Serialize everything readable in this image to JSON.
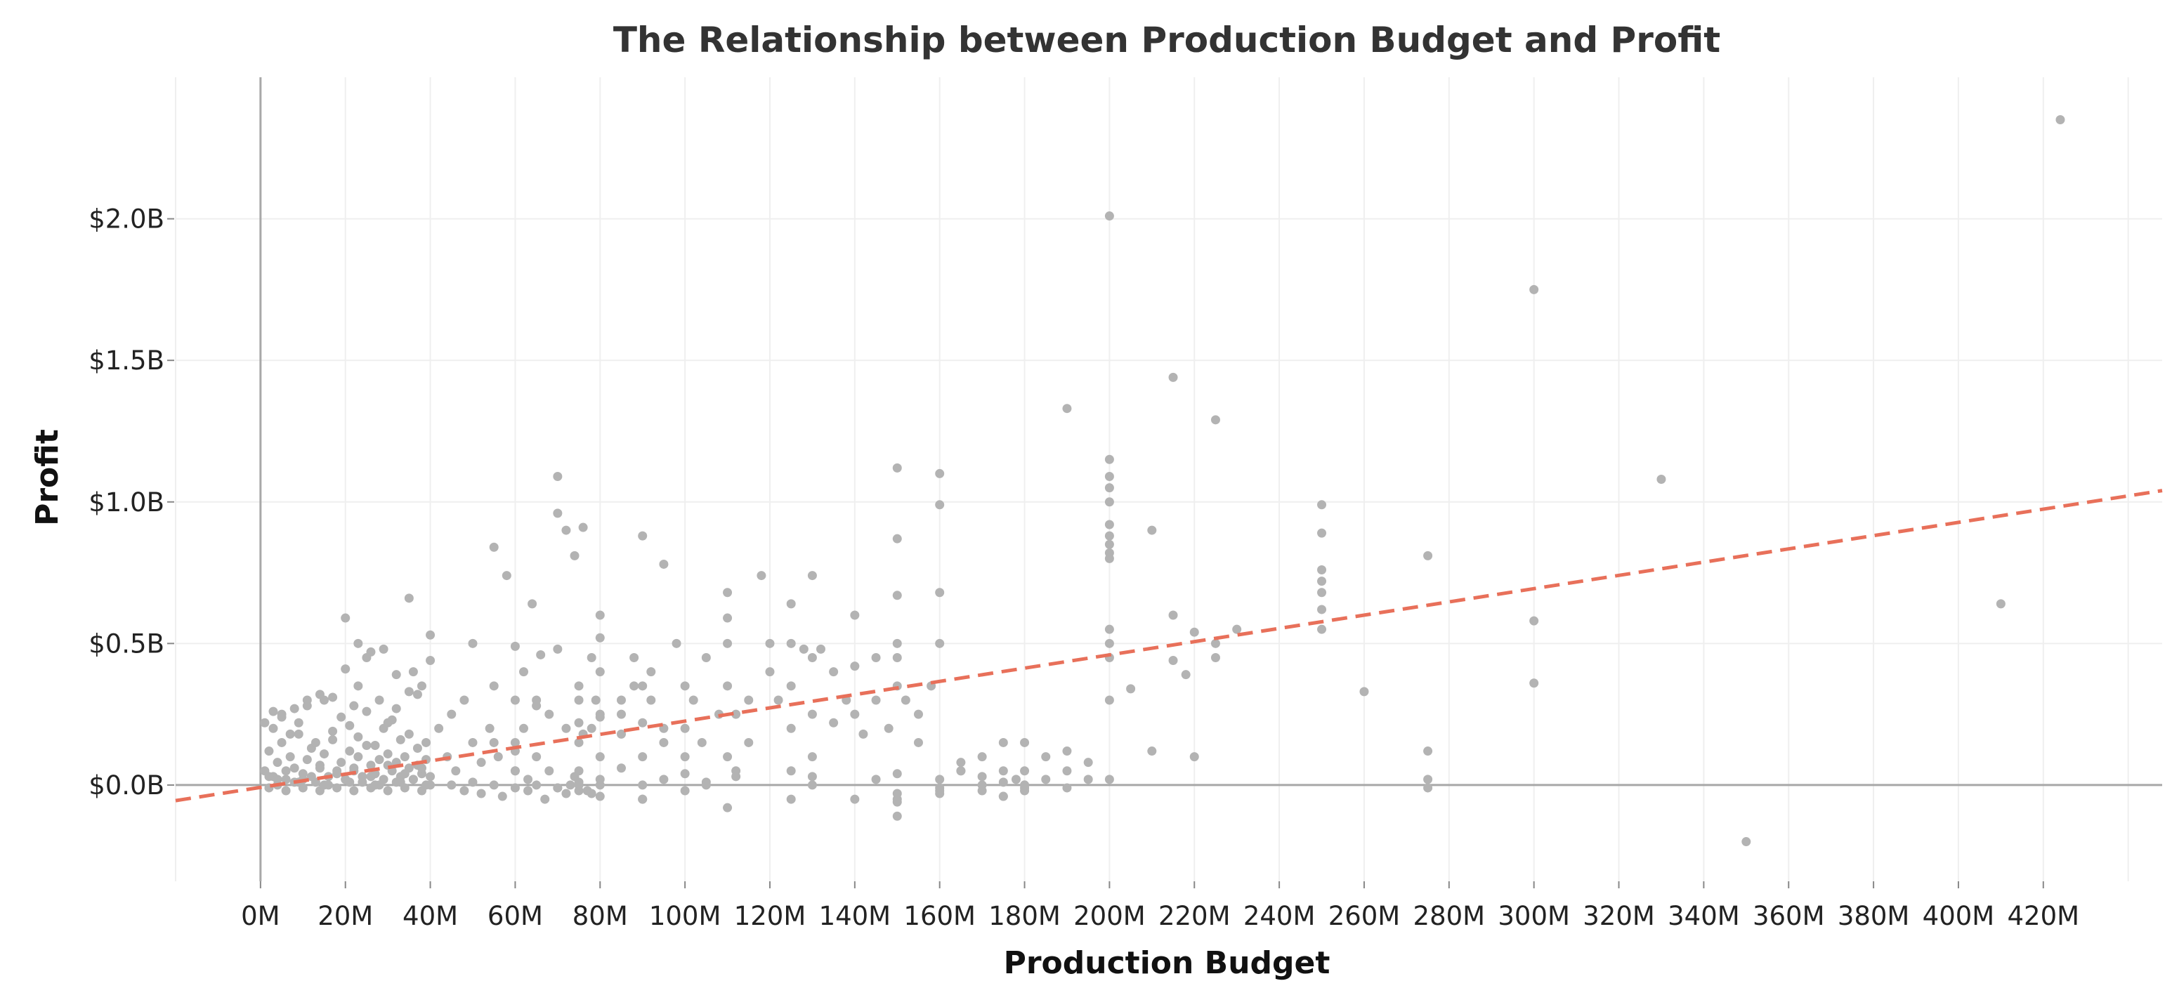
{
  "chart_data": {
    "type": "scatter",
    "title": "The Relationship between Production Budget and Profit",
    "xlabel": "Production Budget",
    "ylabel": "Profit",
    "xlim": [
      -20,
      448
    ],
    "ylim": [
      -0.34,
      2.5
    ],
    "grid": true,
    "x_ticks": [
      {
        "value": 0,
        "label": "0M"
      },
      {
        "value": 20,
        "label": "20M"
      },
      {
        "value": 40,
        "label": "40M"
      },
      {
        "value": 60,
        "label": "60M"
      },
      {
        "value": 80,
        "label": "80M"
      },
      {
        "value": 100,
        "label": "100M"
      },
      {
        "value": 120,
        "label": "120M"
      },
      {
        "value": 140,
        "label": "140M"
      },
      {
        "value": 160,
        "label": "160M"
      },
      {
        "value": 180,
        "label": "180M"
      },
      {
        "value": 200,
        "label": "200M"
      },
      {
        "value": 220,
        "label": "220M"
      },
      {
        "value": 240,
        "label": "240M"
      },
      {
        "value": 260,
        "label": "260M"
      },
      {
        "value": 280,
        "label": "280M"
      },
      {
        "value": 300,
        "label": "300M"
      },
      {
        "value": 320,
        "label": "320M"
      },
      {
        "value": 340,
        "label": "340M"
      },
      {
        "value": 360,
        "label": "360M"
      },
      {
        "value": 380,
        "label": "380M"
      },
      {
        "value": 400,
        "label": "400M"
      },
      {
        "value": 420,
        "label": "420M"
      }
    ],
    "y_ticks": [
      {
        "value": 0,
        "label": "$0.0B"
      },
      {
        "value": 0.5,
        "label": "$0.5B"
      },
      {
        "value": 1.0,
        "label": "$1.0B"
      },
      {
        "value": 1.5,
        "label": "$1.5B"
      },
      {
        "value": 2.0,
        "label": "$2.0B"
      }
    ],
    "x_units": "millions USD",
    "y_units": "billions USD",
    "trend_line": {
      "style": "dashed",
      "color": "#e8705a",
      "points": [
        [
          -20,
          -0.055
        ],
        [
          448,
          1.04
        ]
      ]
    },
    "point_color": "#b3b3b3",
    "series": [
      {
        "x": [
          1,
          2,
          3,
          4,
          5,
          6,
          7,
          8,
          9,
          10,
          11,
          12,
          13,
          14,
          15,
          16,
          17,
          18,
          19,
          20,
          21,
          22,
          23,
          24,
          25,
          26,
          27,
          28,
          29,
          30,
          31,
          32,
          33,
          34,
          35,
          36,
          37,
          38,
          39,
          40,
          2,
          4,
          6,
          8,
          10,
          12,
          14,
          16,
          18,
          20,
          22,
          24,
          26,
          28,
          30,
          32,
          34,
          36,
          38,
          40,
          3,
          5,
          7,
          9,
          11,
          13,
          15,
          17,
          19,
          21,
          23,
          25,
          27,
          29,
          31,
          33,
          35,
          37,
          39,
          1,
          3,
          5,
          8,
          11,
          14,
          17,
          20,
          23,
          26,
          29,
          32,
          35,
          38,
          2,
          6,
          10,
          14,
          18,
          22,
          26,
          30,
          34,
          38,
          4,
          9,
          15,
          21,
          27,
          33,
          39,
          20,
          22,
          23,
          25,
          28,
          30,
          32,
          35,
          36,
          37,
          40,
          40,
          42,
          44,
          45,
          46,
          48,
          50,
          50,
          52,
          54,
          55,
          55,
          56,
          58,
          60,
          60,
          60,
          60,
          62,
          62,
          64,
          65,
          65,
          66,
          68,
          68,
          70,
          70,
          70,
          72,
          72,
          74,
          75,
          75,
          75,
          76,
          78,
          78,
          80,
          80,
          80,
          80,
          80,
          45,
          48,
          50,
          52,
          55,
          57,
          60,
          63,
          65,
          67,
          70,
          72,
          75,
          77,
          80,
          55,
          60,
          65,
          75,
          75,
          76,
          79,
          80,
          80,
          85,
          85,
          85,
          88,
          90,
          90,
          90,
          90,
          90,
          92,
          95,
          95,
          85,
          88,
          90,
          92,
          95,
          98,
          100,
          100,
          100,
          100,
          102,
          104,
          105,
          105,
          108,
          110,
          110,
          110,
          110,
          110,
          112,
          112,
          115,
          115,
          118,
          120,
          120,
          122,
          125,
          125,
          125,
          125,
          128,
          130,
          130,
          130,
          130,
          132,
          135,
          135,
          138,
          140,
          140,
          140,
          142,
          145,
          145,
          148,
          150,
          150,
          150,
          150,
          150,
          150,
          152,
          155,
          155,
          158,
          160,
          160,
          160,
          160,
          100,
          112,
          125,
          130,
          140,
          150,
          150,
          150,
          160,
          160,
          165,
          165,
          170,
          170,
          170,
          175,
          175,
          175,
          178,
          180,
          180,
          180,
          180,
          185,
          185,
          190,
          190,
          190,
          195,
          195,
          60,
          63,
          70,
          73,
          74,
          75,
          75,
          78,
          80,
          90,
          95,
          105,
          110,
          125,
          130,
          145,
          150,
          150,
          160,
          160,
          165,
          170,
          175,
          175,
          180,
          180,
          200,
          200,
          200,
          200,
          200,
          200,
          200,
          200,
          200,
          200,
          200,
          200,
          200,
          200,
          205,
          210,
          210,
          215,
          215,
          218,
          220,
          220,
          225,
          225,
          230,
          250,
          250,
          250,
          250,
          250,
          250,
          250,
          260,
          275,
          275,
          275,
          275,
          200,
          215,
          225,
          190,
          300,
          300,
          300,
          330,
          350,
          410,
          424
        ],
        "y": [
          0.05,
          0.12,
          0.03,
          0.08,
          0.15,
          0.02,
          0.1,
          0.06,
          0.18,
          0.04,
          0.09,
          0.13,
          0.01,
          0.07,
          0.11,
          0.03,
          0.16,
          0.05,
          0.08,
          0.02,
          0.12,
          0.06,
          0.1,
          0.03,
          0.14,
          0.07,
          0.04,
          0.09,
          0.02,
          0.11,
          0.05,
          0.08,
          0.03,
          0.1,
          0.06,
          0.02,
          0.07,
          0.04,
          0.09,
          0.03,
          -0.01,
          0.02,
          -0.02,
          0.01,
          -0.01,
          0.03,
          -0.02,
          0.0,
          -0.01,
          0.02,
          -0.02,
          0.01,
          -0.01,
          0.0,
          -0.02,
          0.01,
          -0.01,
          0.02,
          -0.02,
          0.0,
          0.2,
          0.25,
          0.18,
          0.22,
          0.28,
          0.15,
          0.3,
          0.19,
          0.24,
          0.21,
          0.17,
          0.26,
          0.14,
          0.2,
          0.23,
          0.16,
          0.18,
          0.13,
          0.15,
          0.22,
          0.26,
          0.24,
          0.27,
          0.3,
          0.32,
          0.31,
          0.59,
          0.5,
          0.47,
          0.48,
          0.39,
          0.33,
          0.35,
          0.03,
          0.05,
          0.02,
          0.06,
          0.04,
          0.05,
          0.03,
          0.07,
          0.04,
          0.06,
          0.0,
          0.01,
          0.0,
          0.01,
          0.0,
          0.01,
          0.0,
          0.41,
          0.28,
          0.35,
          0.45,
          0.3,
          0.22,
          0.27,
          0.66,
          0.4,
          0.32,
          0.53,
          0.44,
          0.2,
          0.1,
          0.25,
          0.05,
          0.3,
          0.5,
          0.15,
          0.08,
          0.2,
          0.84,
          0.35,
          0.1,
          0.74,
          0.49,
          0.3,
          0.15,
          0.05,
          0.4,
          0.2,
          0.64,
          0.3,
          0.1,
          0.46,
          0.25,
          0.05,
          1.09,
          0.96,
          0.48,
          0.9,
          0.2,
          0.81,
          0.3,
          0.15,
          0.05,
          0.91,
          0.45,
          0.2,
          0.6,
          0.4,
          0.25,
          0.1,
          0.02,
          0.0,
          -0.02,
          0.01,
          -0.03,
          0.0,
          -0.04,
          -0.01,
          -0.02,
          0.0,
          -0.05,
          -0.01,
          -0.03,
          0.0,
          -0.02,
          -0.04,
          0.15,
          0.12,
          0.28,
          0.35,
          0.22,
          0.18,
          0.3,
          0.24,
          0.52,
          0.3,
          0.18,
          0.06,
          0.45,
          0.88,
          0.35,
          0.22,
          0.1,
          0.0,
          0.4,
          0.78,
          0.2,
          0.25,
          0.35,
          -0.05,
          0.3,
          0.15,
          0.5,
          0.35,
          0.2,
          0.1,
          -0.02,
          0.3,
          0.15,
          0.45,
          0.0,
          0.25,
          0.68,
          0.59,
          0.5,
          0.35,
          0.1,
          0.25,
          0.05,
          0.3,
          0.15,
          0.74,
          0.5,
          0.4,
          0.3,
          0.64,
          0.5,
          0.35,
          0.2,
          0.48,
          0.74,
          0.45,
          0.25,
          0.1,
          0.48,
          0.4,
          0.22,
          0.3,
          0.6,
          0.42,
          0.25,
          0.18,
          0.45,
          0.3,
          0.2,
          1.12,
          0.87,
          0.67,
          0.5,
          0.45,
          0.35,
          0.3,
          0.25,
          0.15,
          0.35,
          1.1,
          0.99,
          0.68,
          0.5,
          0.04,
          0.03,
          0.05,
          0.0,
          -0.05,
          -0.05,
          -0.03,
          -0.11,
          -0.02,
          -0.03,
          0.05,
          0.08,
          0.1,
          0.0,
          -0.02,
          0.15,
          0.05,
          -0.04,
          0.02,
          0.0,
          0.05,
          0.15,
          -0.01,
          0.02,
          0.1,
          0.05,
          -0.01,
          0.12,
          0.08,
          0.02,
          0.05,
          0.02,
          -0.01,
          0.0,
          0.03,
          -0.02,
          0.01,
          -0.03,
          0.0,
          -0.05,
          0.02,
          0.01,
          -0.08,
          -0.05,
          0.03,
          0.02,
          -0.06,
          0.04,
          0.02,
          -0.01,
          0.05,
          0.03,
          0.01,
          -0.04,
          0.0,
          -0.02,
          2.01,
          1.15,
          1.09,
          1.05,
          1.0,
          0.92,
          0.88,
          0.85,
          0.82,
          0.55,
          0.5,
          0.45,
          0.3,
          0.02,
          0.34,
          0.9,
          0.12,
          1.44,
          0.44,
          0.39,
          0.54,
          0.1,
          1.29,
          0.45,
          0.55,
          0.99,
          0.89,
          0.76,
          0.72,
          0.68,
          0.62,
          0.55,
          0.33,
          0.81,
          0.12,
          0.02,
          -0.01,
          0.8,
          0.6,
          0.5,
          1.33,
          1.75,
          0.58,
          0.36,
          1.08,
          -0.2,
          0.64,
          2.35
        ]
      }
    ]
  }
}
